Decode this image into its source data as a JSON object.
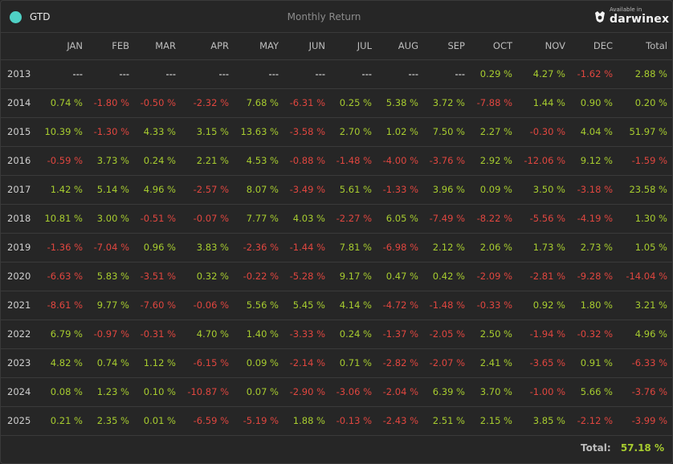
{
  "header": {
    "ticker": "GTD",
    "title": "Monthly Return",
    "brand_available": "Available in",
    "brand_name": "darwinex"
  },
  "columns": [
    "",
    "JAN",
    "FEB",
    "MAR",
    "APR",
    "MAY",
    "JUN",
    "JUL",
    "AUG",
    "SEP",
    "OCT",
    "NOV",
    "DEC",
    "Total"
  ],
  "rows": [
    {
      "year": "2013",
      "cells": [
        "---",
        "---",
        "---",
        "---",
        "---",
        "---",
        "---",
        "---",
        "---",
        "0.29 %",
        "4.27 %",
        "-1.62 %",
        "2.88 %"
      ]
    },
    {
      "year": "2014",
      "cells": [
        "0.74 %",
        "-1.80 %",
        "-0.50 %",
        "-2.32 %",
        "7.68 %",
        "-6.31 %",
        "0.25 %",
        "5.38 %",
        "3.72 %",
        "-7.88 %",
        "1.44 %",
        "0.90 %",
        "0.20 %"
      ]
    },
    {
      "year": "2015",
      "cells": [
        "10.39 %",
        "-1.30 %",
        "4.33 %",
        "3.15 %",
        "13.63 %",
        "-3.58 %",
        "2.70 %",
        "1.02 %",
        "7.50 %",
        "2.27 %",
        "-0.30 %",
        "4.04 %",
        "51.97 %"
      ]
    },
    {
      "year": "2016",
      "cells": [
        "-0.59 %",
        "3.73 %",
        "0.24 %",
        "2.21 %",
        "4.53 %",
        "-0.88 %",
        "-1.48 %",
        "-4.00 %",
        "-3.76 %",
        "2.92 %",
        "-12.06 %",
        "9.12 %",
        "-1.59 %"
      ]
    },
    {
      "year": "2017",
      "cells": [
        "1.42 %",
        "5.14 %",
        "4.96 %",
        "-2.57 %",
        "8.07 %",
        "-3.49 %",
        "5.61 %",
        "-1.33 %",
        "3.96 %",
        "0.09 %",
        "3.50 %",
        "-3.18 %",
        "23.58 %"
      ]
    },
    {
      "year": "2018",
      "cells": [
        "10.81 %",
        "3.00 %",
        "-0.51 %",
        "-0.07 %",
        "7.77 %",
        "4.03 %",
        "-2.27 %",
        "6.05 %",
        "-7.49 %",
        "-8.22 %",
        "-5.56 %",
        "-4.19 %",
        "1.30 %"
      ]
    },
    {
      "year": "2019",
      "cells": [
        "-1.36 %",
        "-7.04 %",
        "0.96 %",
        "3.83 %",
        "-2.36 %",
        "-1.44 %",
        "7.81 %",
        "-6.98 %",
        "2.12 %",
        "2.06 %",
        "1.73 %",
        "2.73 %",
        "1.05 %"
      ]
    },
    {
      "year": "2020",
      "cells": [
        "-6.63 %",
        "5.83 %",
        "-3.51 %",
        "0.32 %",
        "-0.22 %",
        "-5.28 %",
        "9.17 %",
        "0.47 %",
        "0.42 %",
        "-2.09 %",
        "-2.81 %",
        "-9.28 %",
        "-14.04 %"
      ]
    },
    {
      "year": "2021",
      "cells": [
        "-8.61 %",
        "9.77 %",
        "-7.60 %",
        "-0.06 %",
        "5.56 %",
        "5.45 %",
        "4.14 %",
        "-4.72 %",
        "-1.48 %",
        "-0.33 %",
        "0.92 %",
        "1.80 %",
        "3.21 %"
      ]
    },
    {
      "year": "2022",
      "cells": [
        "6.79 %",
        "-0.97 %",
        "-0.31 %",
        "4.70 %",
        "1.40 %",
        "-3.33 %",
        "0.24 %",
        "-1.37 %",
        "-2.05 %",
        "2.50 %",
        "-1.94 %",
        "-0.32 %",
        "4.96 %"
      ]
    },
    {
      "year": "2023",
      "cells": [
        "4.82 %",
        "0.74 %",
        "1.12 %",
        "-6.15 %",
        "0.09 %",
        "-2.14 %",
        "0.71 %",
        "-2.82 %",
        "-2.07 %",
        "2.41 %",
        "-3.65 %",
        "0.91 %",
        "-6.33 %"
      ]
    },
    {
      "year": "2024",
      "cells": [
        "0.08 %",
        "1.23 %",
        "0.10 %",
        "-10.87 %",
        "0.07 %",
        "-2.90 %",
        "-3.06 %",
        "-2.04 %",
        "6.39 %",
        "3.70 %",
        "-1.00 %",
        "5.66 %",
        "-3.76 %"
      ]
    },
    {
      "year": "2025",
      "cells": [
        "0.21 %",
        "2.35 %",
        "0.01 %",
        "-6.59 %",
        "-5.19 %",
        "1.88 %",
        "-0.13 %",
        "-2.43 %",
        "2.51 %",
        "2.15 %",
        "3.85 %",
        "-2.12 %",
        "-3.99 %"
      ]
    }
  ],
  "footer": {
    "label": "Total:",
    "value": "57.18 %"
  },
  "colors": {
    "positive": "#a7cc2f",
    "negative": "#e0463f",
    "accent": "#4fd1c5"
  }
}
